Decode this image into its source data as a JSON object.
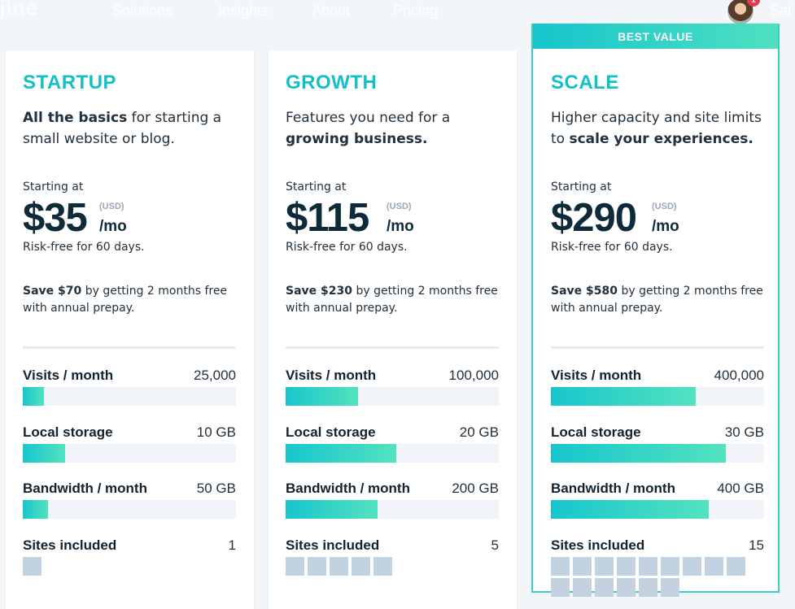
{
  "nav": {
    "logo_fragment": "jine",
    "links": [
      "Solutions",
      "Insights",
      "About",
      "Pricing"
    ],
    "right_fragment": "Sal",
    "notification_count": "1"
  },
  "plans": [
    {
      "name": "STARTUP",
      "desc_bold_first": "All the basics",
      "desc_rest": " for starting a small website or blog.",
      "starting_label": "Starting at",
      "price": "$35",
      "currency": "(USD)",
      "period": "/mo",
      "risk_free": "Risk-free for 60 days.",
      "save_bold": "Save $70",
      "save_rest": " by getting 2 months free with annual prepay.",
      "features": [
        {
          "label": "Visits / month",
          "value": "25,000",
          "level": 0.1
        },
        {
          "label": "Local storage",
          "value": "10 GB",
          "level": 0.2
        },
        {
          "label": "Bandwidth / month",
          "value": "50 GB",
          "level": 0.12
        }
      ],
      "sites_label": "Sites included",
      "sites_value": "1",
      "sites_count": 1
    },
    {
      "name": "GROWTH",
      "desc_plain": "Features you need for a ",
      "desc_bold_last": "growing business.",
      "starting_label": "Starting at",
      "price": "$115",
      "currency": "(USD)",
      "period": "/mo",
      "risk_free": "Risk-free for 60 days.",
      "save_bold": "Save $230",
      "save_rest": " by getting 2 months free with annual prepay.",
      "features": [
        {
          "label": "Visits / month",
          "value": "100,000",
          "level": 0.34
        },
        {
          "label": "Local storage",
          "value": "20 GB",
          "level": 0.52
        },
        {
          "label": "Bandwidth / month",
          "value": "200 GB",
          "level": 0.43
        }
      ],
      "sites_label": "Sites included",
      "sites_value": "5",
      "sites_count": 5
    },
    {
      "name": "SCALE",
      "badge": "BEST VALUE",
      "desc_plain": "Higher capacity and site limits to ",
      "desc_bold_last": "scale your experiences.",
      "starting_label": "Starting at",
      "price": "$290",
      "currency": "(USD)",
      "period": "/mo",
      "risk_free": "Risk-free for 60 days.",
      "save_bold": "Save $580",
      "save_rest": " by getting 2 months free with annual prepay.",
      "features": [
        {
          "label": "Visits / month",
          "value": "400,000",
          "level": 0.68
        },
        {
          "label": "Local storage",
          "value": "30 GB",
          "level": 0.82
        },
        {
          "label": "Bandwidth / month",
          "value": "400 GB",
          "level": 0.74
        }
      ],
      "sites_label": "Sites included",
      "sites_value": "15",
      "sites_count": 15
    }
  ],
  "colors": {
    "accent": "#12c0ca",
    "gradient_start": "#17c6cd",
    "gradient_end": "#53e2bf",
    "site_block": "#c2d2e0",
    "page_bg": "#f3f6f9"
  }
}
